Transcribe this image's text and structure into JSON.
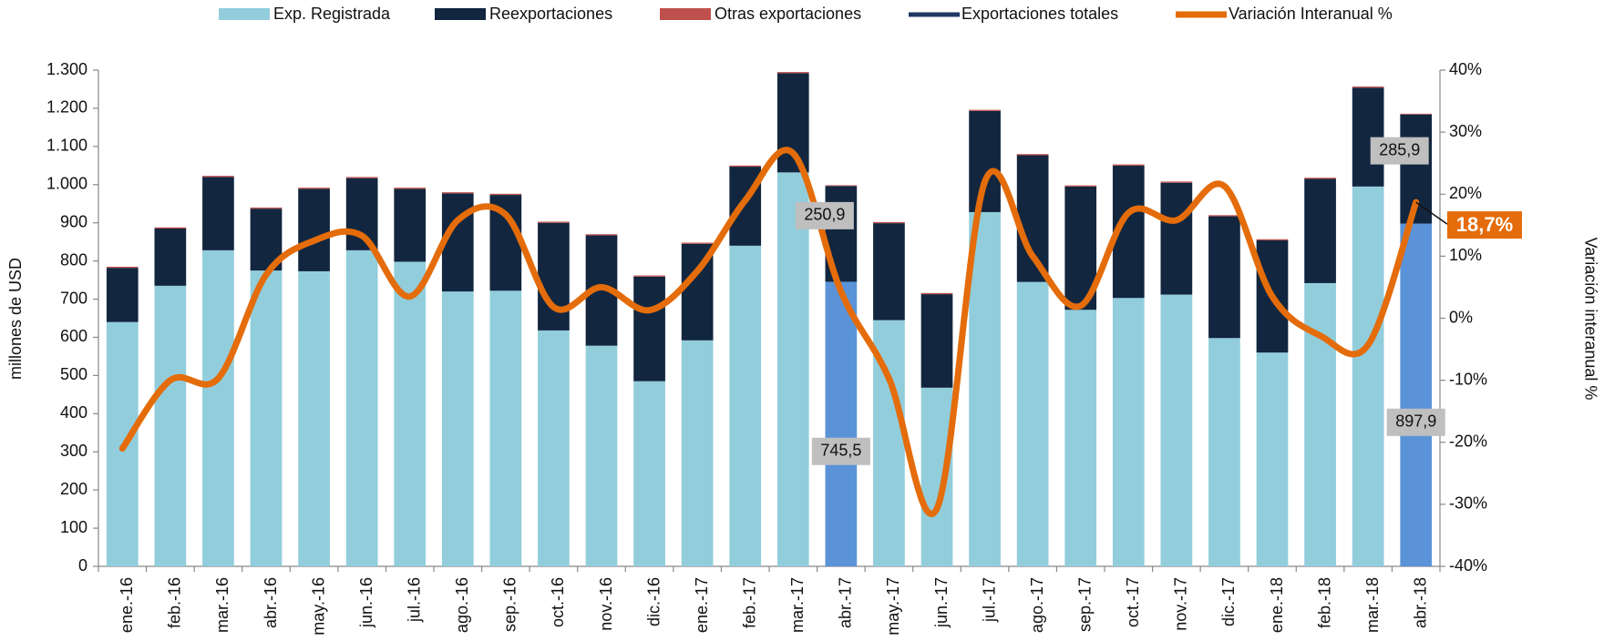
{
  "chart_data": {
    "type": "bar_line",
    "categories": [
      "ene.-16",
      "feb.-16",
      "mar.-16",
      "abr.-16",
      "may.-16",
      "jun.-16",
      "jul.-16",
      "ago.-16",
      "sep.-16",
      "oct.-16",
      "nov.-16",
      "dic.-16",
      "ene.-17",
      "feb.-17",
      "mar.-17",
      "abr.-17",
      "may.-17",
      "jun.-17",
      "jul.-17",
      "ago.-17",
      "sep.-17",
      "oct.-17",
      "nov.-17",
      "dic.-17",
      "ene.-18",
      "feb.-18",
      "mar.-18",
      "abr.-18"
    ],
    "series": [
      {
        "name": "Exp. Registrada",
        "color": "#92cddc",
        "highlight_color": "#5b93d8",
        "highlight_indices": [
          15,
          27
        ],
        "values": [
          640,
          735,
          828,
          775,
          773,
          828,
          798,
          720,
          722,
          618,
          578,
          485,
          592,
          840,
          1032,
          745.5,
          645,
          468,
          928,
          745,
          672,
          703,
          712,
          598,
          560,
          742,
          995,
          897.9
        ],
        "value_labels": [
          null,
          null,
          null,
          null,
          null,
          null,
          null,
          null,
          null,
          null,
          null,
          null,
          null,
          null,
          null,
          "745,5",
          null,
          null,
          null,
          null,
          null,
          null,
          null,
          null,
          null,
          null,
          null,
          "897,9"
        ]
      },
      {
        "name": "Reexportaciones",
        "color": "#12263f",
        "values": [
          142,
          150,
          192,
          162,
          216,
          189,
          191,
          257,
          251,
          282,
          289,
          274,
          253,
          207,
          260,
          250.9,
          254,
          245,
          265,
          332,
          323,
          347,
          293,
          319,
          294,
          273,
          259,
          285.9
        ],
        "value_labels": [
          null,
          null,
          null,
          null,
          null,
          null,
          null,
          null,
          null,
          null,
          null,
          null,
          null,
          null,
          null,
          "250,9",
          null,
          null,
          null,
          null,
          null,
          null,
          null,
          null,
          null,
          null,
          null,
          "285,9"
        ]
      },
      {
        "name": "Otras exportaciones",
        "color": "#c0504d",
        "values": [
          3,
          3,
          3,
          3,
          3,
          3,
          3,
          3,
          3,
          3,
          3,
          3,
          3,
          3,
          3,
          2,
          3,
          3,
          3,
          3,
          3,
          3,
          3,
          3,
          3,
          3,
          3,
          2
        ]
      },
      {
        "name": "Exportaciones  totales",
        "color": "#1f3864",
        "legend_only": true
      },
      {
        "name": "Variación Interanual %",
        "color": "#e46c0a",
        "axis": "y2",
        "values": [
          -21,
          -10,
          -9.7,
          7,
          12.5,
          13.3,
          3.5,
          15.8,
          16.7,
          1.8,
          5,
          1.3,
          7.6,
          19,
          26.6,
          4.3,
          -9.7,
          -30.7,
          22,
          10,
          2,
          17,
          15.8,
          21.3,
          3.5,
          -2.8,
          -4.3,
          18.7
        ],
        "value_labels": [
          null,
          null,
          null,
          null,
          null,
          null,
          null,
          null,
          null,
          null,
          null,
          null,
          null,
          null,
          null,
          null,
          null,
          null,
          null,
          null,
          null,
          null,
          null,
          null,
          null,
          null,
          null,
          "18,7%"
        ]
      }
    ],
    "ylabel": "millones de  USD",
    "y2label": "Variación  interanual %",
    "ylim": [
      0,
      1300
    ],
    "yticks": [
      0,
      100,
      200,
      300,
      400,
      500,
      600,
      700,
      800,
      900,
      {
        "value": 1000,
        "label": "1.000"
      },
      {
        "value": 1100,
        "label": "1.100"
      },
      {
        "value": 1200,
        "label": "1.200"
      },
      {
        "value": 1300,
        "label": "1.300"
      }
    ],
    "y2lim": [
      -40,
      40
    ],
    "y2ticks": [
      {
        "value": -40,
        "label": "-40%"
      },
      {
        "value": -30,
        "label": "-30%"
      },
      {
        "value": -20,
        "label": "-20%"
      },
      {
        "value": -10,
        "label": "-10%"
      },
      {
        "value": 0,
        "label": "0%"
      },
      {
        "value": 10,
        "label": "10%"
      },
      {
        "value": 20,
        "label": "20%"
      },
      {
        "value": 30,
        "label": "30%"
      },
      {
        "value": 40,
        "label": "40%"
      }
    ]
  }
}
